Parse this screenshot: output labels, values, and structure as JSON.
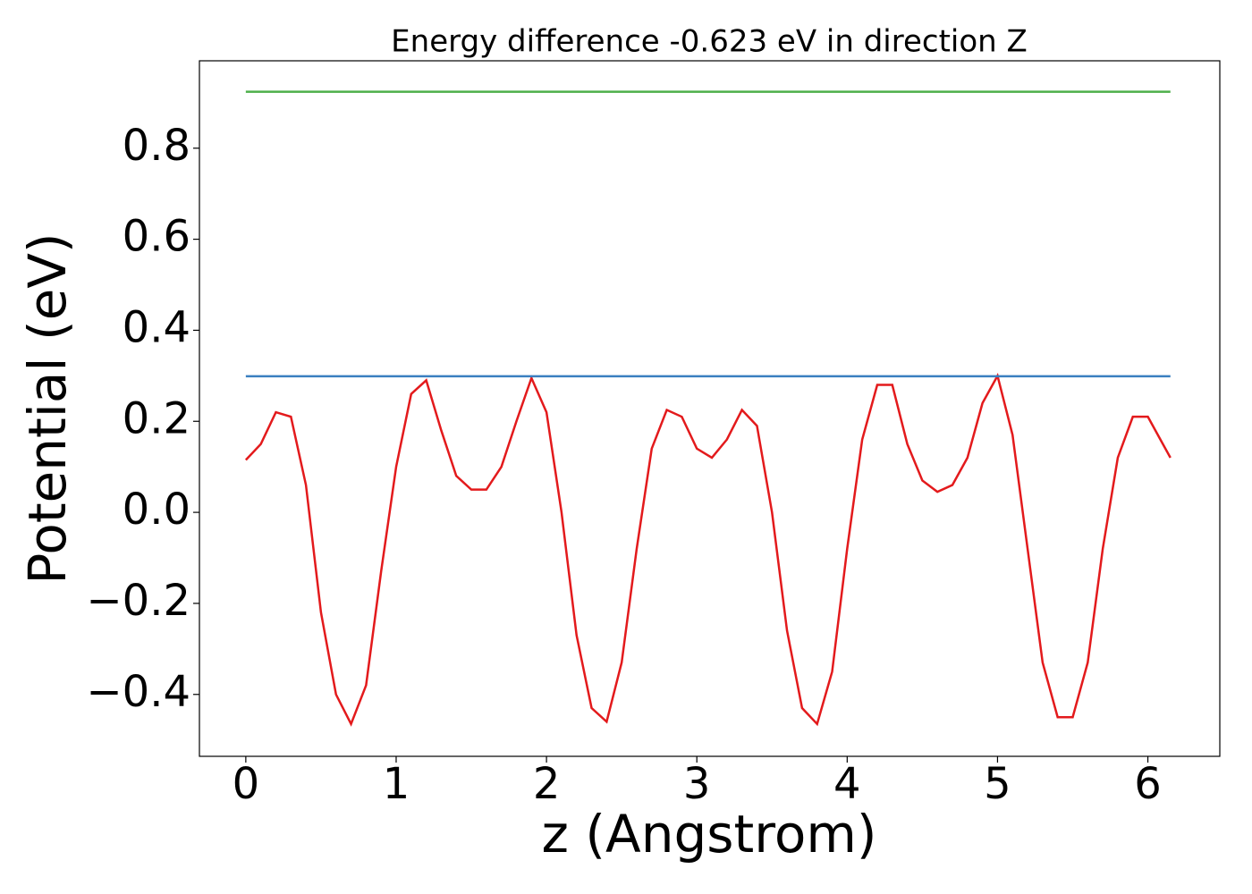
{
  "chart_data": {
    "type": "line",
    "title": "Energy difference -0.623 eV in direction Z",
    "xlabel": "z (Angstrom)",
    "ylabel": "Potential (eV)",
    "xlim": [
      -0.3085,
      6.4785
    ],
    "ylim": [
      -0.536,
      0.992
    ],
    "xticks": [
      0,
      1,
      2,
      3,
      4,
      5,
      6
    ],
    "yticks": [
      {
        "value": -0.4,
        "label": "−0.4"
      },
      {
        "value": -0.2,
        "label": "−0.2"
      },
      {
        "value": 0,
        "label": "0.0"
      },
      0.2,
      0.4,
      0.6,
      0.8
    ],
    "grid": false,
    "series": [
      {
        "color": "#e31a1c",
        "x": [
          0,
          0.1,
          0.2,
          0.3,
          0.4,
          0.5,
          0.6,
          0.7,
          0.8,
          0.9,
          1.0,
          1.1,
          1.2,
          1.3,
          1.4,
          1.5,
          1.6,
          1.7,
          1.8,
          1.9,
          2.0,
          2.1,
          2.2,
          2.3,
          2.4,
          2.5,
          2.6,
          2.7,
          2.8,
          2.9,
          3.0,
          3.1,
          3.2,
          3.3,
          3.4,
          3.5,
          3.6,
          3.7,
          3.8,
          3.9,
          4.0,
          4.1,
          4.2,
          4.3,
          4.4,
          4.5,
          4.6,
          4.7,
          4.8,
          4.9,
          5.0,
          5.1,
          5.2,
          5.3,
          5.4,
          5.5,
          5.6,
          5.7,
          5.8,
          5.9,
          6.0,
          6.1,
          6.15
        ],
        "values": [
          0.115,
          0.15,
          0.22,
          0.21,
          0.06,
          -0.22,
          -0.4,
          -0.465,
          -0.38,
          -0.13,
          0.1,
          0.26,
          0.29,
          0.18,
          0.08,
          0.05,
          0.05,
          0.1,
          0.2,
          0.295,
          0.22,
          0.0,
          -0.27,
          -0.43,
          -0.46,
          -0.33,
          -0.08,
          0.14,
          0.225,
          0.21,
          0.14,
          0.12,
          0.16,
          0.225,
          0.19,
          0.0,
          -0.26,
          -0.43,
          -0.465,
          -0.35,
          -0.08,
          0.16,
          0.28,
          0.28,
          0.15,
          0.07,
          0.045,
          0.06,
          0.12,
          0.24,
          0.3,
          0.17,
          -0.08,
          -0.33,
          -0.45,
          -0.45,
          -0.33,
          -0.08,
          0.12,
          0.21,
          0.21,
          0.15,
          0.12
        ]
      },
      {
        "color": "#3a7fc0",
        "x": [
          0,
          6.15
        ],
        "values": [
          0.299,
          0.299
        ]
      },
      {
        "color": "#4daf4a",
        "x": [
          0,
          6.15
        ],
        "values": [
          0.924,
          0.924
        ]
      }
    ]
  }
}
